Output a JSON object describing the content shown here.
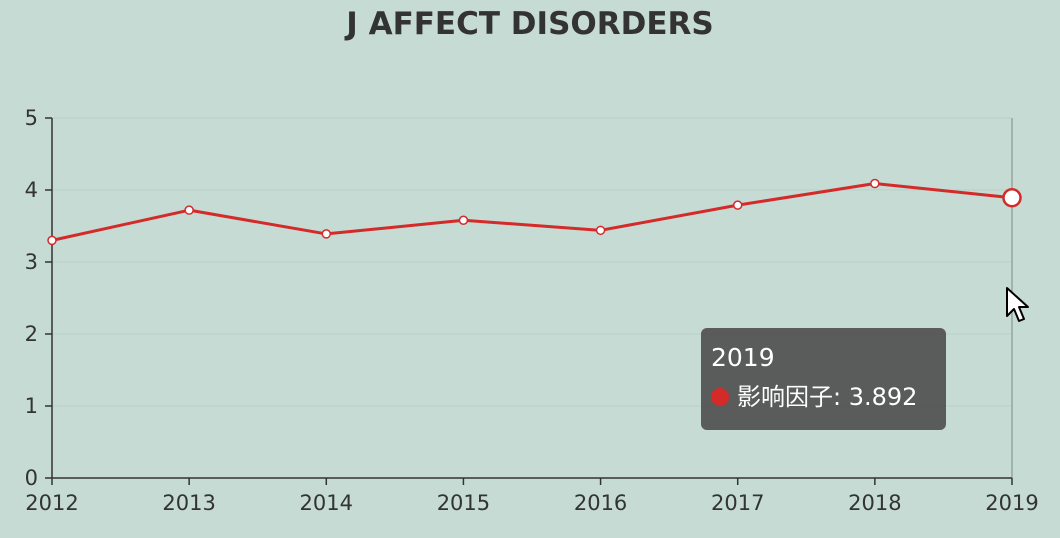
{
  "colors": {
    "background": "#c6dbd3",
    "line": "#d42a2a",
    "axis": "#333333",
    "grid": "#b9cfc7",
    "tooltip_bg": "#555555"
  },
  "chart_data": {
    "type": "line",
    "title": "J AFFECT DISORDERS",
    "x": [
      "2012",
      "2013",
      "2014",
      "2015",
      "2016",
      "2017",
      "2018",
      "2019"
    ],
    "series": [
      {
        "name": "影响因子",
        "values": [
          3.3,
          3.72,
          3.39,
          3.58,
          3.44,
          3.79,
          4.09,
          3.892
        ]
      }
    ],
    "ylim": [
      0,
      5
    ],
    "yticks": [
      "0",
      "1",
      "2",
      "3",
      "4",
      "5"
    ],
    "grid": true,
    "highlighted_index": 7
  },
  "tooltip": {
    "title": "2019",
    "series_name": "影响因子",
    "value_text": "3.892"
  },
  "icons": {
    "cursor": "mouse-pointer-icon",
    "tooltip_marker": "series-dot-icon"
  }
}
